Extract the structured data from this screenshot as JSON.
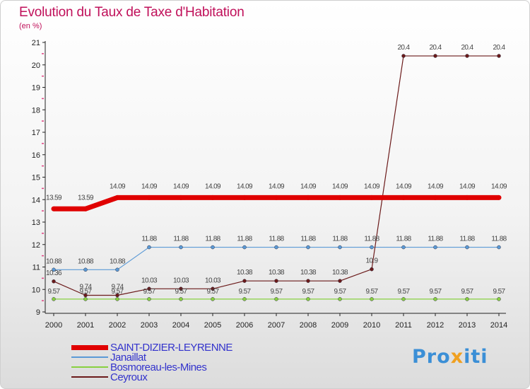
{
  "chart_data": {
    "type": "line",
    "title": "Evolution du Taux de Taxe d'Habitation",
    "unit_label": "(en %)",
    "x": [
      "2000",
      "2001",
      "2002",
      "2003",
      "2004",
      "2005",
      "2006",
      "2007",
      "2008",
      "2009",
      "2010",
      "2011",
      "2012",
      "2013",
      "2014"
    ],
    "yticks": [
      9,
      10,
      11,
      12,
      13,
      14,
      15,
      16,
      17,
      18,
      19,
      20,
      21
    ],
    "ylim": [
      9,
      21
    ],
    "series": [
      {
        "name": "SAINT-DIZIER-LEYRENNE",
        "color": "#e00000",
        "width": 7,
        "marker": 7,
        "values": [
          13.59,
          13.59,
          14.09,
          14.09,
          14.09,
          14.09,
          14.09,
          14.09,
          14.09,
          14.09,
          14.09,
          14.09,
          14.09,
          14.09,
          14.09
        ],
        "labels": [
          "13.59",
          "13.59",
          "14.09",
          "14.09",
          "14.09",
          "14.09",
          "14.09",
          "14.09",
          "14.09",
          "14.09",
          "14.09",
          "14.09",
          "14.09",
          "14.09",
          "14.09"
        ]
      },
      {
        "name": "Janaillat",
        "color": "#5b9ad6",
        "width": 1.2,
        "marker": 3,
        "values": [
          10.88,
          10.88,
          10.88,
          11.88,
          11.88,
          11.88,
          11.88,
          11.88,
          11.88,
          11.88,
          11.88,
          11.88,
          11.88,
          11.88,
          11.88
        ],
        "labels": [
          "10.88",
          "10.88",
          "10.88",
          "11.88",
          "11.88",
          "11.88",
          "11.88",
          "11.88",
          "11.88",
          "11.88",
          "11.88",
          "11.88",
          "11.88",
          "11.88",
          "11.88"
        ]
      },
      {
        "name": "Bosmoreau-les-Mines",
        "color": "#88d040",
        "width": 1.2,
        "marker": 3,
        "values": [
          9.57,
          9.57,
          9.57,
          9.57,
          9.57,
          9.57,
          9.57,
          9.57,
          9.57,
          9.57,
          9.57,
          9.57,
          9.57,
          9.57,
          9.57
        ],
        "labels": [
          "9.57",
          "9.57",
          "9.57",
          "9.57",
          "9.57",
          "9.57",
          "9.57",
          "9.57",
          "9.57",
          "9.57",
          "9.57",
          "9.57",
          "9.57",
          "9.57",
          "9.57"
        ]
      },
      {
        "name": "Ceyroux",
        "color": "#6b1a1a",
        "width": 1.2,
        "marker": 3,
        "values": [
          10.36,
          9.74,
          9.74,
          10.03,
          10.03,
          10.03,
          10.38,
          10.38,
          10.38,
          10.38,
          10.9,
          20.4,
          20.4,
          20.4,
          20.4
        ],
        "labels": [
          "10.36",
          "9.74",
          "9.74",
          "10.03",
          "10.03",
          "10.03",
          "10.38",
          "10.38",
          "10.38",
          "10.38",
          "10.9",
          "20.4",
          "20.4",
          "20.4",
          "20.4"
        ]
      }
    ]
  },
  "branding": {
    "logo_text": "Proxiti"
  }
}
